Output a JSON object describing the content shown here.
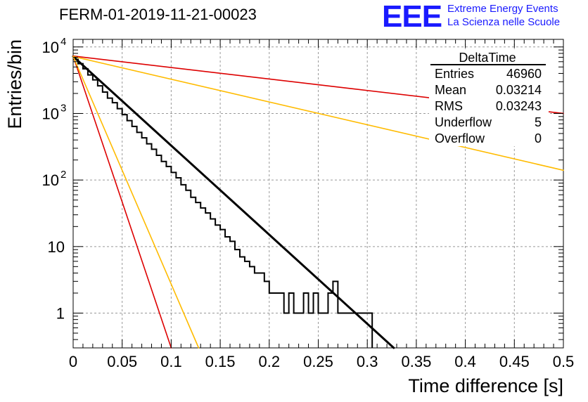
{
  "header": {
    "title": "FERM-01-2019-11-21-00023",
    "logo": "EEE",
    "logo_line1": "Extreme Energy Events",
    "logo_line2": "La Scienza nelle Scuole"
  },
  "stats": {
    "name": "DeltaTime",
    "rows": [
      {
        "label": "Entries",
        "value": "46960"
      },
      {
        "label": "Mean",
        "value": "0.03214"
      },
      {
        "label": "RMS",
        "value": "0.03243"
      },
      {
        "label": "Underflow",
        "value": "5"
      },
      {
        "label": "Overflow",
        "value": "0"
      }
    ]
  },
  "colors": {
    "histogram": "#000000",
    "fit": "#000000",
    "red": "#dd0000",
    "yellow": "#ffbb00",
    "grid": "#999999"
  },
  "chart_data": {
    "type": "line",
    "xlabel": "Time difference [s]",
    "ylabel": "Entries/bin",
    "xlim": [
      0,
      0.5
    ],
    "ylim": [
      0.3,
      13000
    ],
    "yscale": "log",
    "grid": true,
    "x_ticks": [
      "0",
      "0.05",
      "0.1",
      "0.15",
      "0.2",
      "0.25",
      "0.3",
      "0.35",
      "0.4",
      "0.45",
      "0.5"
    ],
    "y_ticks": [
      {
        "value": 1,
        "base": "1",
        "exp": ""
      },
      {
        "value": 10,
        "base": "10",
        "exp": ""
      },
      {
        "value": 100,
        "base": "10",
        "exp": "2"
      },
      {
        "value": 1000,
        "base": "10",
        "exp": "3"
      },
      {
        "value": 10000,
        "base": "10",
        "exp": "4"
      }
    ],
    "histogram": {
      "bin_width": 0.005,
      "counts": [
        6500,
        5600,
        4700,
        3800,
        3200,
        2600,
        2100,
        1700,
        1450,
        1180,
        960,
        780,
        640,
        520,
        430,
        350,
        290,
        235,
        190,
        160,
        130,
        108,
        85,
        70,
        55,
        46,
        38,
        32,
        26,
        21,
        18,
        14,
        12,
        9,
        7,
        6,
        5,
        4,
        4,
        3,
        2,
        2,
        2,
        1,
        2,
        1,
        1,
        2,
        1,
        2,
        1,
        1,
        2,
        3,
        1,
        1,
        1,
        1,
        1,
        1,
        1
      ]
    },
    "series": [
      {
        "points": [
          [
            0,
            7200
          ],
          [
            0.327,
            0.3
          ]
        ],
        "color": "#000000",
        "width": 3
      },
      {
        "points": [
          [
            0,
            7300
          ],
          [
            0.5,
            1000
          ]
        ],
        "color": "#dd0000",
        "width": 1.6
      },
      {
        "points": [
          [
            0,
            7300
          ],
          [
            0.1,
            0.3
          ]
        ],
        "color": "#dd0000",
        "width": 1.6
      },
      {
        "points": [
          [
            0,
            7200
          ],
          [
            0.5,
            140
          ]
        ],
        "color": "#ffbb00",
        "width": 1.6
      },
      {
        "points": [
          [
            0,
            7200
          ],
          [
            0.128,
            0.3
          ]
        ],
        "color": "#ffbb00",
        "width": 1.6
      }
    ]
  }
}
